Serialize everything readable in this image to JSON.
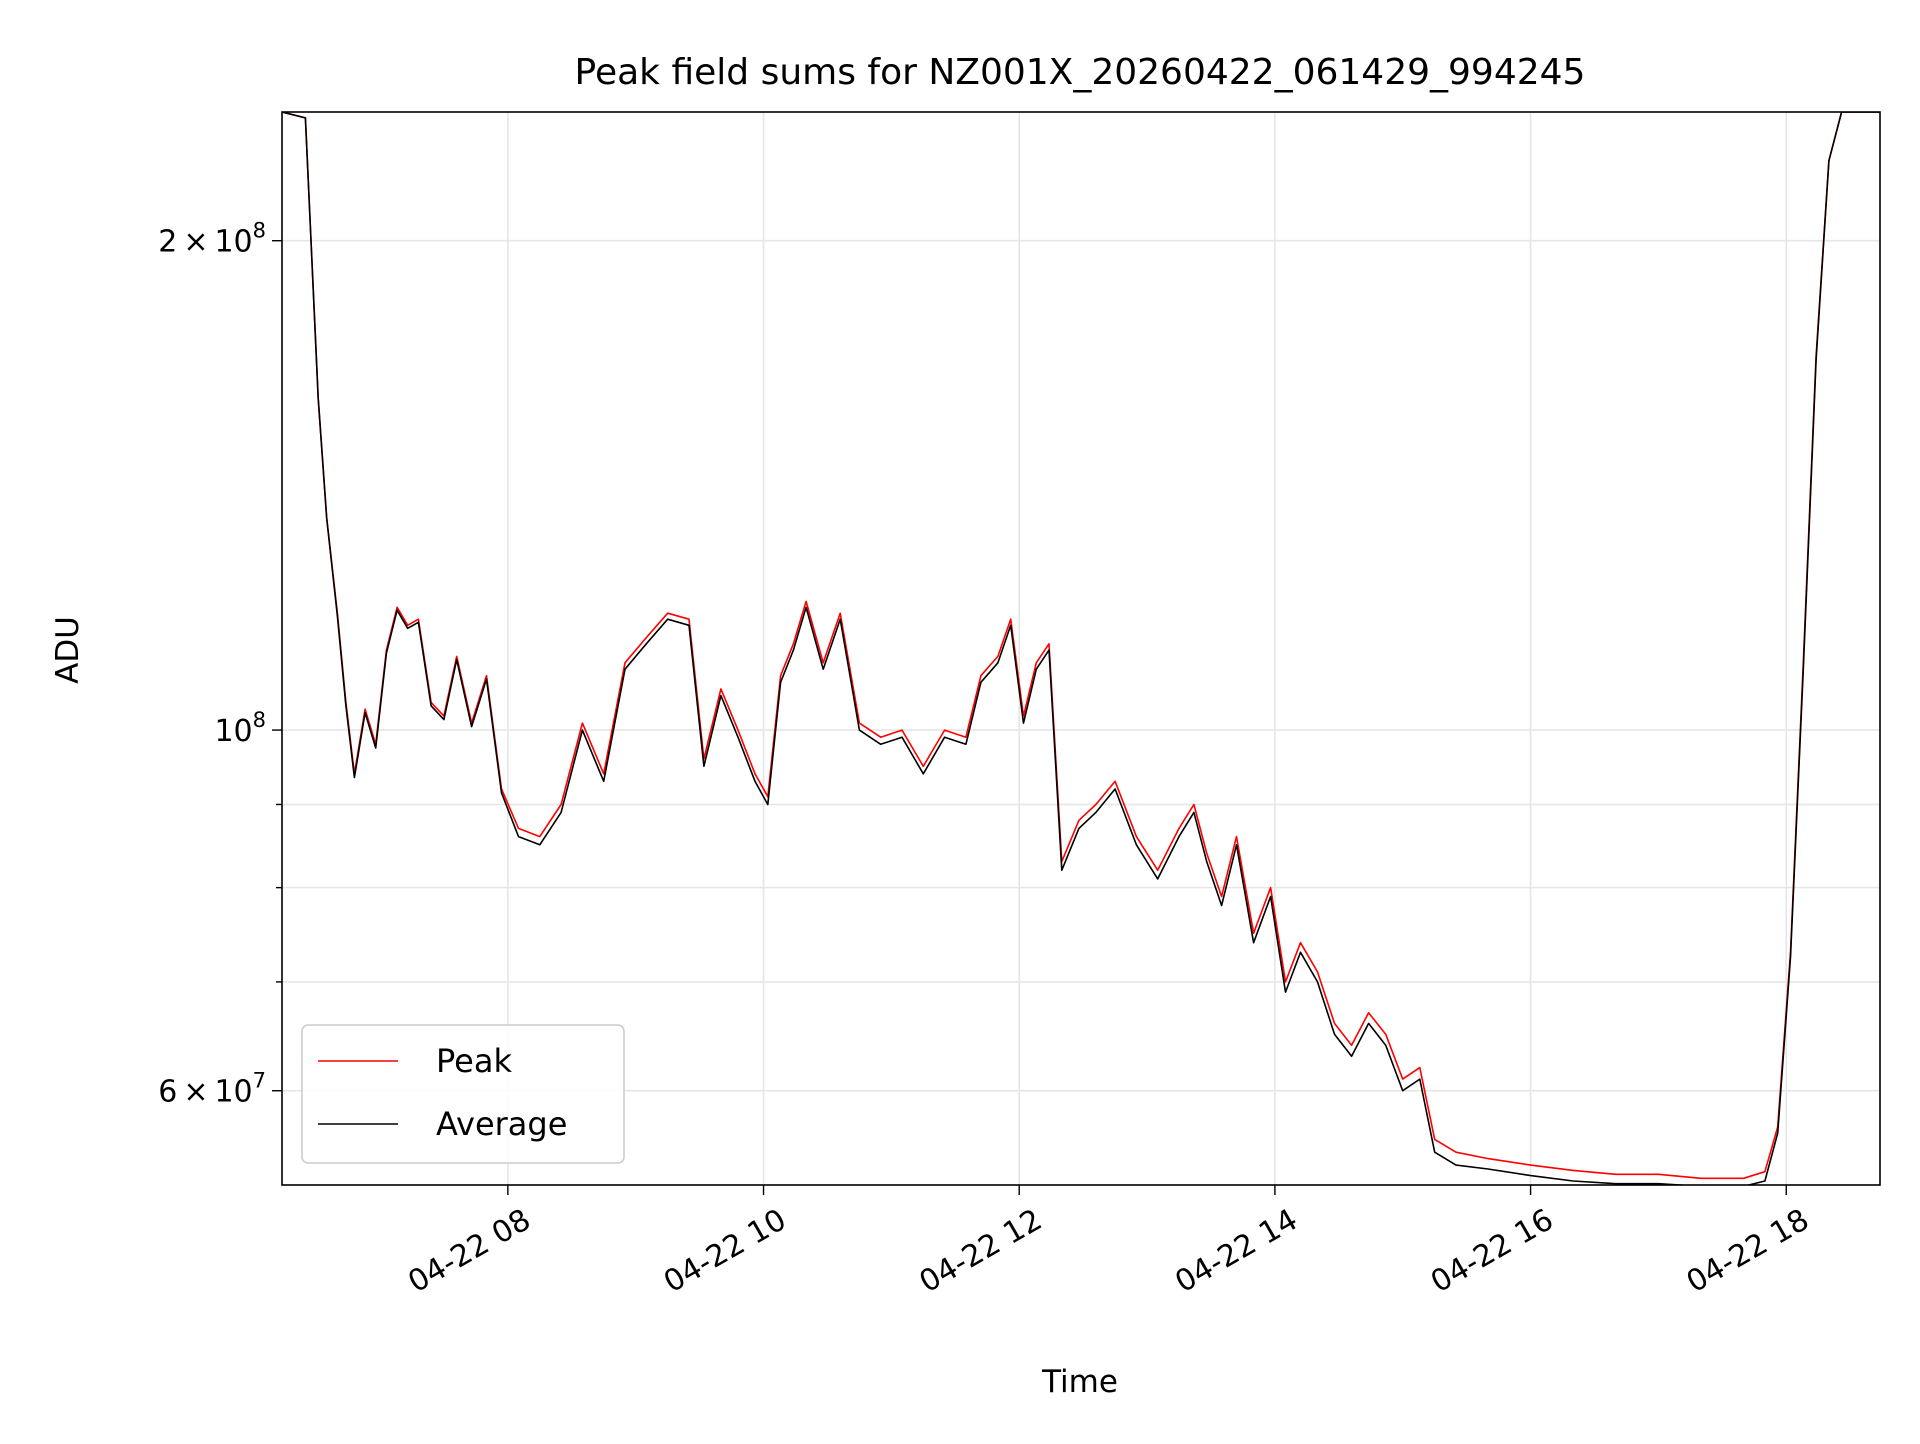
{
  "chart_data": {
    "type": "line",
    "title": "Peak field sums for NZ001X_20260422_061429_994245",
    "xlabel": "Time",
    "ylabel": "ADU",
    "x_domain": [
      "2026-04-22 06:14",
      "2026-04-22 18:44"
    ],
    "ylim": [
      52500000,
      240000000
    ],
    "yscale": "log",
    "grid": true,
    "legend": "lower-left",
    "x_ticks": [
      {
        "value": "2026-04-22 08:00",
        "label": "04-22 08"
      },
      {
        "value": "2026-04-22 10:00",
        "label": "04-22 10"
      },
      {
        "value": "2026-04-22 12:00",
        "label": "04-22 12"
      },
      {
        "value": "2026-04-22 14:00",
        "label": "04-22 14"
      },
      {
        "value": "2026-04-22 16:00",
        "label": "04-22 16"
      },
      {
        "value": "2026-04-22 18:00",
        "label": "04-22 18"
      }
    ],
    "y_major_ticks": [
      {
        "value": 60000000,
        "mantissa": "6",
        "exponent": "7"
      },
      {
        "value": 100000000,
        "mantissa": "",
        "exponent": "8"
      },
      {
        "value": 200000000,
        "mantissa": "2",
        "exponent": "8"
      }
    ],
    "y_minor_ticks": [
      70000000,
      80000000,
      90000000
    ],
    "times_multiplier_sign": "×",
    "base": "10",
    "colors": {
      "Peak": "#ff0000",
      "Average": "#000000"
    },
    "series": [
      {
        "name": "Peak",
        "x": [
          "2026-04-22 06:14",
          "2026-04-22 06:25",
          "2026-04-22 06:31",
          "2026-04-22 06:35",
          "2026-04-22 06:40",
          "2026-04-22 06:44",
          "2026-04-22 06:48",
          "2026-04-22 06:53",
          "2026-04-22 06:58",
          "2026-04-22 07:03",
          "2026-04-22 07:08",
          "2026-04-22 07:13",
          "2026-04-22 07:18",
          "2026-04-22 07:24",
          "2026-04-22 07:30",
          "2026-04-22 07:36",
          "2026-04-22 07:43",
          "2026-04-22 07:50",
          "2026-04-22 07:57",
          "2026-04-22 08:05",
          "2026-04-22 08:15",
          "2026-04-22 08:25",
          "2026-04-22 08:35",
          "2026-04-22 08:45",
          "2026-04-22 08:55",
          "2026-04-22 09:05",
          "2026-04-22 09:15",
          "2026-04-22 09:25",
          "2026-04-22 09:32",
          "2026-04-22 09:40",
          "2026-04-22 09:48",
          "2026-04-22 09:56",
          "2026-04-22 10:02",
          "2026-04-22 10:08",
          "2026-04-22 10:14",
          "2026-04-22 10:20",
          "2026-04-22 10:28",
          "2026-04-22 10:36",
          "2026-04-22 10:45",
          "2026-04-22 10:55",
          "2026-04-22 11:05",
          "2026-04-22 11:15",
          "2026-04-22 11:25",
          "2026-04-22 11:35",
          "2026-04-22 11:42",
          "2026-04-22 11:50",
          "2026-04-22 11:56",
          "2026-04-22 12:02",
          "2026-04-22 12:08",
          "2026-04-22 12:14",
          "2026-04-22 12:20",
          "2026-04-22 12:28",
          "2026-04-22 12:36",
          "2026-04-22 12:45",
          "2026-04-22 12:55",
          "2026-04-22 13:05",
          "2026-04-22 13:15",
          "2026-04-22 13:22",
          "2026-04-22 13:28",
          "2026-04-22 13:35",
          "2026-04-22 13:42",
          "2026-04-22 13:50",
          "2026-04-22 13:58",
          "2026-04-22 14:05",
          "2026-04-22 14:12",
          "2026-04-22 14:20",
          "2026-04-22 14:28",
          "2026-04-22 14:36",
          "2026-04-22 14:44",
          "2026-04-22 14:52",
          "2026-04-22 15:00",
          "2026-04-22 15:08",
          "2026-04-22 15:15",
          "2026-04-22 15:25",
          "2026-04-22 15:40",
          "2026-04-22 16:00",
          "2026-04-22 16:20",
          "2026-04-22 16:40",
          "2026-04-22 17:00",
          "2026-04-22 17:20",
          "2026-04-22 17:40",
          "2026-04-22 17:50",
          "2026-04-22 17:56",
          "2026-04-22 18:02",
          "2026-04-22 18:08",
          "2026-04-22 18:14",
          "2026-04-22 18:20",
          "2026-04-22 18:26",
          "2026-04-22 18:32",
          "2026-04-22 18:38",
          "2026-04-22 18:44"
        ],
        "y": [
          240000000,
          238000000,
          160000000,
          135000000,
          118000000,
          104000000,
          94000000,
          103000000,
          98000000,
          112000000,
          119000000,
          116000000,
          117000000,
          104000000,
          102000000,
          111000000,
          101000000,
          108000000,
          92000000,
          87000000,
          86000000,
          90000000,
          101000000,
          94000000,
          110000000,
          114000000,
          118000000,
          117000000,
          96000000,
          106000000,
          100000000,
          94000000,
          91000000,
          108000000,
          113000000,
          120000000,
          110000000,
          118000000,
          101000000,
          99000000,
          100000000,
          95000000,
          100000000,
          99000000,
          108000000,
          111000000,
          117000000,
          102000000,
          110000000,
          113000000,
          83000000,
          88000000,
          90000000,
          93000000,
          86000000,
          82000000,
          87000000,
          90000000,
          84000000,
          79000000,
          86000000,
          75000000,
          80000000,
          70000000,
          74000000,
          71000000,
          66000000,
          64000000,
          67000000,
          65000000,
          61000000,
          62000000,
          56000000,
          55000000,
          54500000,
          54000000,
          53600000,
          53300000,
          53300000,
          53000000,
          53000000,
          53500000,
          57000000,
          73000000,
          110000000,
          170000000,
          224000000,
          240000000,
          240000000,
          240000000,
          240000000
        ]
      },
      {
        "name": "Average",
        "x": [
          "2026-04-22 06:14",
          "2026-04-22 06:25",
          "2026-04-22 06:31",
          "2026-04-22 06:35",
          "2026-04-22 06:40",
          "2026-04-22 06:44",
          "2026-04-22 06:48",
          "2026-04-22 06:53",
          "2026-04-22 06:58",
          "2026-04-22 07:03",
          "2026-04-22 07:08",
          "2026-04-22 07:13",
          "2026-04-22 07:18",
          "2026-04-22 07:24",
          "2026-04-22 07:30",
          "2026-04-22 07:36",
          "2026-04-22 07:43",
          "2026-04-22 07:50",
          "2026-04-22 07:57",
          "2026-04-22 08:05",
          "2026-04-22 08:15",
          "2026-04-22 08:25",
          "2026-04-22 08:35",
          "2026-04-22 08:45",
          "2026-04-22 08:55",
          "2026-04-22 09:05",
          "2026-04-22 09:15",
          "2026-04-22 09:25",
          "2026-04-22 09:32",
          "2026-04-22 09:40",
          "2026-04-22 09:48",
          "2026-04-22 09:56",
          "2026-04-22 10:02",
          "2026-04-22 10:08",
          "2026-04-22 10:14",
          "2026-04-22 10:20",
          "2026-04-22 10:28",
          "2026-04-22 10:36",
          "2026-04-22 10:45",
          "2026-04-22 10:55",
          "2026-04-22 11:05",
          "2026-04-22 11:15",
          "2026-04-22 11:25",
          "2026-04-22 11:35",
          "2026-04-22 11:42",
          "2026-04-22 11:50",
          "2026-04-22 11:56",
          "2026-04-22 12:02",
          "2026-04-22 12:08",
          "2026-04-22 12:14",
          "2026-04-22 12:20",
          "2026-04-22 12:28",
          "2026-04-22 12:36",
          "2026-04-22 12:45",
          "2026-04-22 12:55",
          "2026-04-22 13:05",
          "2026-04-22 13:15",
          "2026-04-22 13:22",
          "2026-04-22 13:28",
          "2026-04-22 13:35",
          "2026-04-22 13:42",
          "2026-04-22 13:50",
          "2026-04-22 13:58",
          "2026-04-22 14:05",
          "2026-04-22 14:12",
          "2026-04-22 14:20",
          "2026-04-22 14:28",
          "2026-04-22 14:36",
          "2026-04-22 14:44",
          "2026-04-22 14:52",
          "2026-04-22 15:00",
          "2026-04-22 15:08",
          "2026-04-22 15:15",
          "2026-04-22 15:25",
          "2026-04-22 15:40",
          "2026-04-22 16:00",
          "2026-04-22 16:20",
          "2026-04-22 16:40",
          "2026-04-22 17:00",
          "2026-04-22 17:20",
          "2026-04-22 17:40",
          "2026-04-22 17:50",
          "2026-04-22 17:56",
          "2026-04-22 18:02",
          "2026-04-22 18:08",
          "2026-04-22 18:14",
          "2026-04-22 18:20",
          "2026-04-22 18:26",
          "2026-04-22 18:32",
          "2026-04-22 18:38",
          "2026-04-22 18:44"
        ],
        "y": [
          240000000,
          238000000,
          160000000,
          135000000,
          117500000,
          103500000,
          93500000,
          102500000,
          97500000,
          111500000,
          118500000,
          115500000,
          116500000,
          103500000,
          101500000,
          110500000,
          100500000,
          107500000,
          91500000,
          86000000,
          85000000,
          89000000,
          100000000,
          93000000,
          109000000,
          113000000,
          117000000,
          116000000,
          95000000,
          105000000,
          99000000,
          93000000,
          90000000,
          107000000,
          112000000,
          119000000,
          109000000,
          117000000,
          100000000,
          98000000,
          99000000,
          94000000,
          99000000,
          98000000,
          107000000,
          110000000,
          116000000,
          101000000,
          109000000,
          112000000,
          82000000,
          87000000,
          89000000,
          92000000,
          85000000,
          81000000,
          86000000,
          89000000,
          83000000,
          78000000,
          85000000,
          74000000,
          79000000,
          69000000,
          73000000,
          70000000,
          65000000,
          63000000,
          66000000,
          64000000,
          60000000,
          61000000,
          55000000,
          54000000,
          53700000,
          53200000,
          52800000,
          52600000,
          52600000,
          52400000,
          52400000,
          52800000,
          56500000,
          72500000,
          109000000,
          169000000,
          224000000,
          240000000,
          240000000,
          240000000,
          240000000
        ]
      }
    ]
  }
}
